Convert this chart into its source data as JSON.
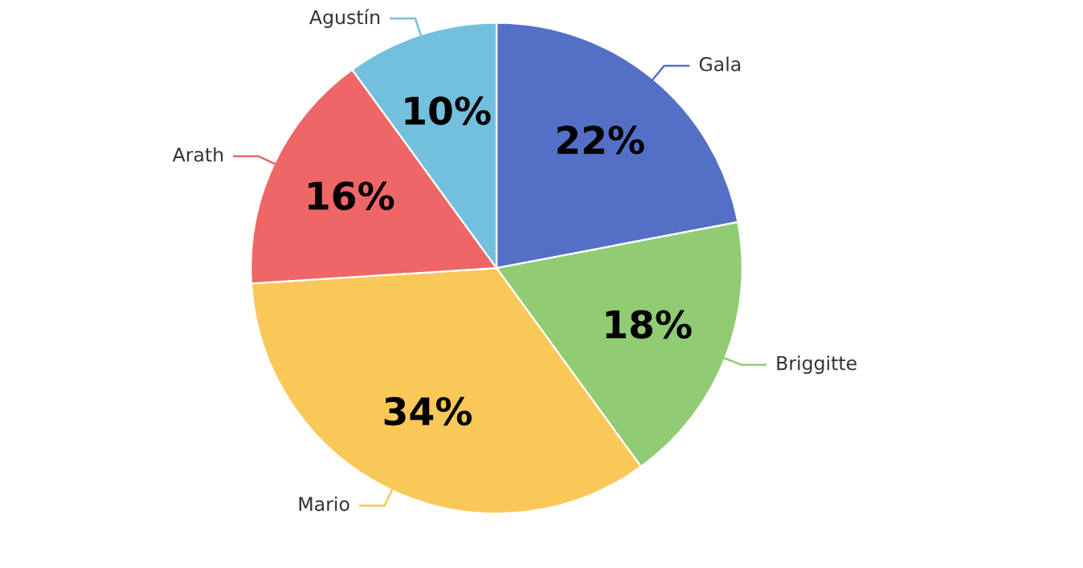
{
  "chart_data": {
    "type": "pie",
    "categories": [
      "Gala",
      "Briggitte",
      "Mario",
      "Arath",
      "Agustín"
    ],
    "values": [
      22,
      18,
      34,
      16,
      10
    ],
    "colors": [
      "#5470c6",
      "#91cc75",
      "#fac858",
      "#ee6666",
      "#73c0de"
    ],
    "value_labels": [
      "22%",
      "18%",
      "34%",
      "16%",
      "10%"
    ]
  }
}
